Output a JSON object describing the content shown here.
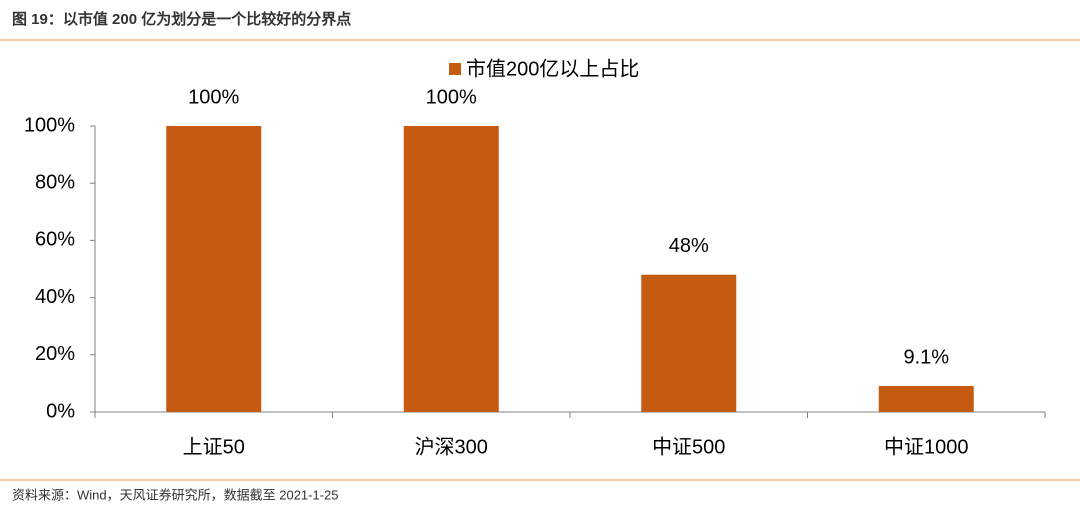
{
  "header": {
    "title": "图 19：以市值 200 亿为划分是一个比较好的分界点"
  },
  "chart_data": {
    "type": "bar",
    "categories": [
      "上证50",
      "沪深300",
      "中证500",
      "中证1000"
    ],
    "series": [
      {
        "name": "市值200亿以上占比",
        "color": "#c55a11",
        "values": [
          100,
          100,
          48,
          9.1
        ],
        "value_labels": [
          "100%",
          "100%",
          "48%",
          "9.1%"
        ]
      }
    ],
    "ylim": [
      0,
      100
    ],
    "yticks": [
      {
        "value": 0,
        "label": "0%"
      },
      {
        "value": 20,
        "label": "20%"
      },
      {
        "value": 40,
        "label": "40%"
      },
      {
        "value": 60,
        "label": "60%"
      },
      {
        "value": 80,
        "label": "80%"
      },
      {
        "value": 100,
        "label": "100%"
      }
    ],
    "grid": false,
    "legend": "top"
  },
  "footer": {
    "source": "资料来源：Wind，天风证券研究所，数据截至 2021-1-25"
  }
}
